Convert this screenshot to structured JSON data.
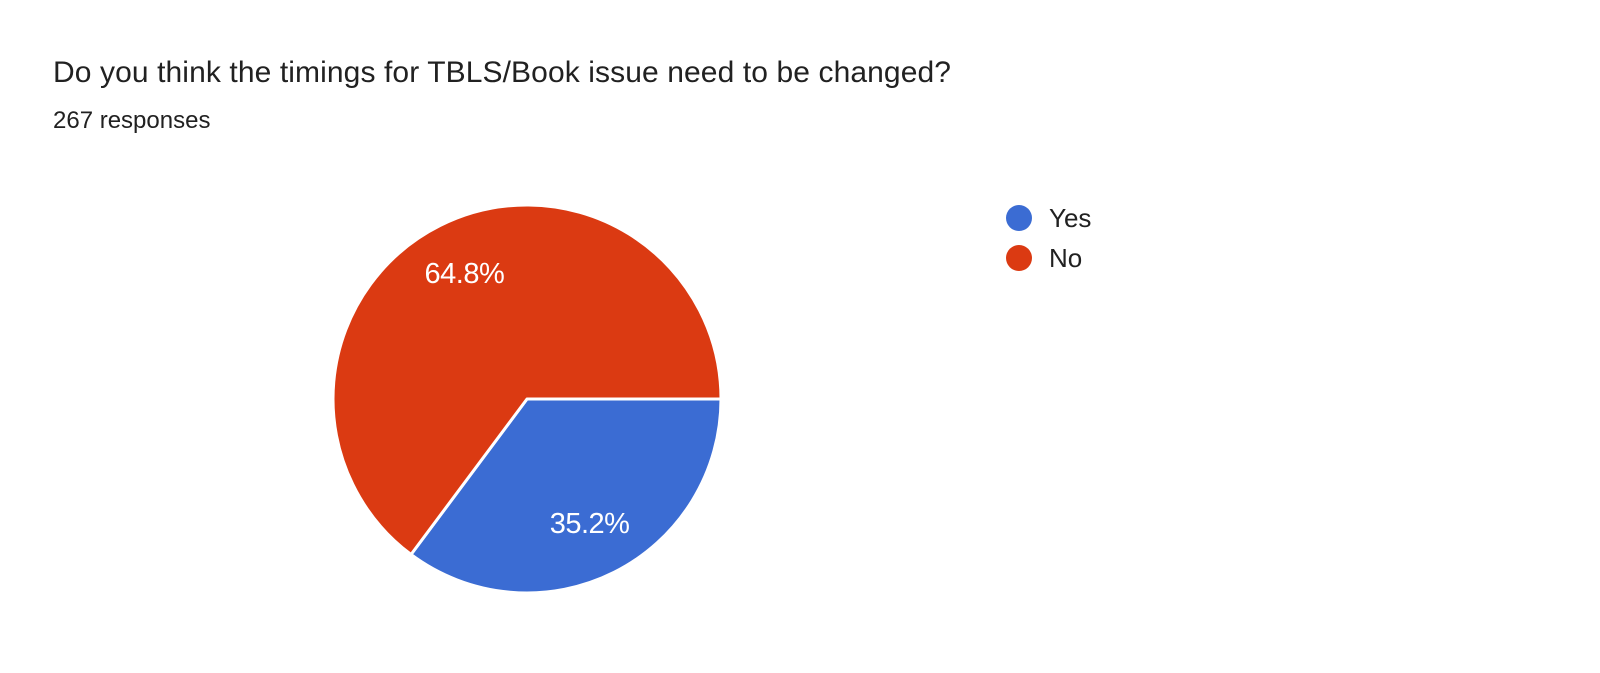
{
  "header": {
    "title": "Do you think the timings for TBLS/Book issue need to be changed?",
    "responses": "267 responses"
  },
  "chart_data": {
    "type": "pie",
    "title": "Do you think the timings for TBLS/Book issue need to be changed?",
    "responses_count": 267,
    "categories": [
      "Yes",
      "No"
    ],
    "values": [
      35.2,
      64.8
    ],
    "slices": [
      {
        "label": "Yes",
        "value": 35.2,
        "display": "35.2%",
        "color": "#3B6CD3"
      },
      {
        "label": "No",
        "value": 64.8,
        "display": "64.8%",
        "color": "#DB3A12"
      }
    ],
    "start_angle_deg": 0,
    "direction": "clockwise",
    "legend_position": "right",
    "slice_label_color": "#ffffff",
    "label_radius_ratio": 0.72,
    "slice_separator_color": "#ffffff"
  },
  "colors": {
    "background": "#ffffff",
    "text": "#212121"
  }
}
